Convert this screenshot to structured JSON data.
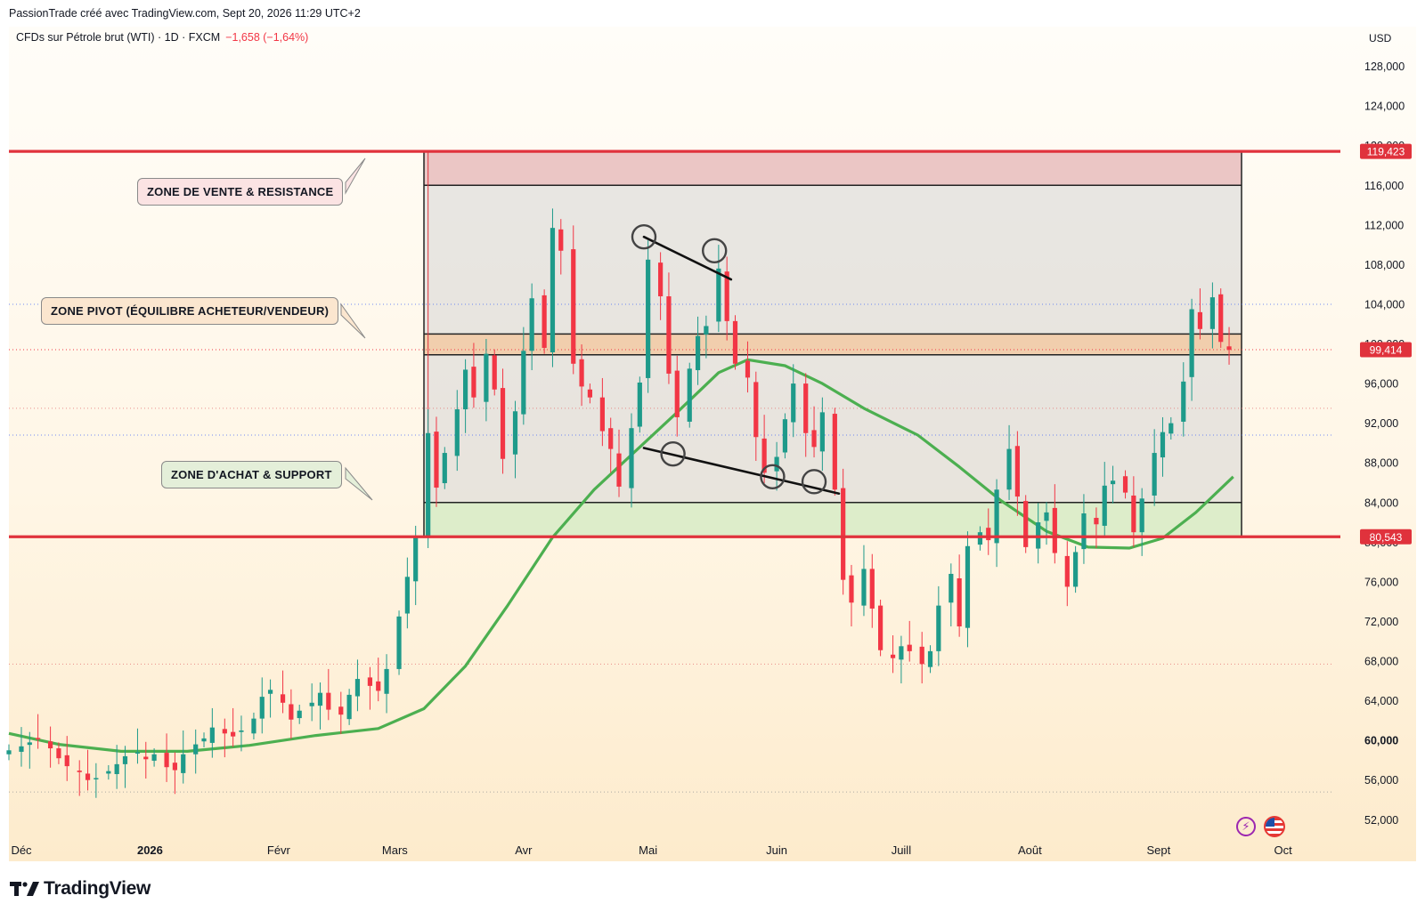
{
  "header": {
    "attribution": "PassionTrade créé avec TradingView.com, Sept 20, 2026 11:29 UTC+2",
    "symbol": "CFDs sur Pétrole brut (WTI) · 1D · FXCM",
    "change": "−1,658 (−1,64%)",
    "currency": "USD"
  },
  "footer": {
    "logo_text": "TradingView"
  },
  "colors": {
    "up": "#1e9a8a",
    "down": "#f23645",
    "ma": "#4caf50",
    "level_line": "#e0323c",
    "zone_sell": "#e6b9b9",
    "zone_pivot": "#f2c8a0",
    "zone_buy": "#d7ebc6",
    "zone_range": "#d6d6d6"
  },
  "annotations": {
    "sell_zone_label": "ZONE DE VENTE & RESISTANCE",
    "pivot_zone_label": "ZONE PIVOT (ÉQUILIBRE ACHETEUR/VENDEUR)",
    "buy_zone_label": "ZONE D'ACHAT & SUPPORT"
  },
  "icons": [
    "lightning-icon",
    "us-flag-icon",
    "tradingview-logo-icon"
  ],
  "chart_data": {
    "type": "candlestick",
    "x_ticks": [
      "Déc",
      "2026",
      "Févr",
      "Mars",
      "Avr",
      "Mai",
      "Juin",
      "Juill",
      "Août",
      "Sept",
      "Oct"
    ],
    "y_ticks": [
      "128,000",
      "124,000",
      "120,000",
      "116,000",
      "112,000",
      "108,000",
      "104,000",
      "100,000",
      "96,000",
      "92,000",
      "88,000",
      "84,000",
      "80,000",
      "76,000",
      "72,000",
      "68,000",
      "64,000",
      "60,000",
      "56,000",
      "52,000"
    ],
    "ylim": [
      49600,
      132000
    ],
    "price_labels": [
      "119,423",
      "99,414",
      "80,543"
    ],
    "levels": {
      "resistance": 119.423,
      "support": 80.543,
      "last": 99.414
    },
    "zones": {
      "sell": [
        116.0,
        119.4
      ],
      "range": [
        84.0,
        116.0
      ],
      "pivot": [
        98.9,
        101.0
      ],
      "buy": [
        80.5,
        84.0
      ]
    },
    "trendlines": [
      {
        "from": [
          "2026-04-30",
          110.8
        ],
        "to": [
          "2026-05-21",
          106.5
        ]
      },
      {
        "from": [
          "2026-04-30",
          89.5
        ],
        "to": [
          "2026-06-16",
          84.9
        ]
      }
    ],
    "pivot_marks": [
      [
        "2026-04-30",
        110.8
      ],
      [
        "2026-05-17",
        109.4
      ],
      [
        "2026-05-07",
        88.9
      ],
      [
        "2026-05-31",
        86.6
      ],
      [
        "2026-06-10",
        86.1
      ]
    ],
    "closes": [
      [
        "2025-11-28",
        59.0
      ],
      [
        "2025-12-01",
        59.4
      ],
      [
        "2025-12-03",
        59.8
      ],
      [
        "2025-12-05",
        60.2
      ],
      [
        "2025-12-08",
        59.2
      ],
      [
        "2025-12-10",
        58.2
      ],
      [
        "2025-12-12",
        57.4
      ],
      [
        "2025-12-15",
        56.8
      ],
      [
        "2025-12-17",
        56.0
      ],
      [
        "2025-12-19",
        56.2
      ],
      [
        "2025-12-22",
        56.9
      ],
      [
        "2025-12-24",
        57.6
      ],
      [
        "2025-12-26",
        58.4
      ],
      [
        "2025-12-29",
        58.8
      ],
      [
        "2025-12-31",
        58.1
      ],
      [
        "2026-01-02",
        58.6
      ],
      [
        "2026-01-05",
        57.3
      ],
      [
        "2026-01-07",
        57.0
      ],
      [
        "2026-01-09",
        58.6
      ],
      [
        "2026-01-12",
        59.6
      ],
      [
        "2026-01-14",
        60.2
      ],
      [
        "2026-01-16",
        61.3
      ],
      [
        "2026-01-19",
        60.7
      ],
      [
        "2026-01-21",
        60.4
      ],
      [
        "2026-01-23",
        61.0
      ],
      [
        "2026-01-26",
        62.2
      ],
      [
        "2026-01-28",
        64.4
      ],
      [
        "2026-01-30",
        65.1
      ],
      [
        "2026-02-02",
        63.8
      ],
      [
        "2026-02-04",
        62.1
      ],
      [
        "2026-02-06",
        63.0
      ],
      [
        "2026-02-09",
        63.8
      ],
      [
        "2026-02-11",
        64.8
      ],
      [
        "2026-02-13",
        63.1
      ],
      [
        "2026-02-16",
        62.6
      ],
      [
        "2026-02-18",
        64.6
      ],
      [
        "2026-02-20",
        66.2
      ],
      [
        "2026-02-23",
        65.5
      ],
      [
        "2026-02-25",
        65.0
      ],
      [
        "2026-02-27",
        67.2
      ],
      [
        "2026-03-02",
        72.5
      ],
      [
        "2026-03-04",
        76.5
      ],
      [
        "2026-03-06",
        80.6
      ],
      [
        "2026-03-09",
        91.0
      ],
      [
        "2026-03-11",
        85.5
      ],
      [
        "2026-03-13",
        89.0
      ],
      [
        "2026-03-16",
        93.4
      ],
      [
        "2026-03-18",
        97.4
      ],
      [
        "2026-03-20",
        94.6
      ],
      [
        "2026-03-23",
        99.0
      ],
      [
        "2026-03-25",
        95.4
      ],
      [
        "2026-03-27",
        88.4
      ],
      [
        "2026-03-30",
        93.2
      ],
      [
        "2026-04-01",
        99.3
      ],
      [
        "2026-04-03",
        104.6
      ],
      [
        "2026-04-06",
        99.6
      ],
      [
        "2026-04-08",
        111.7
      ],
      [
        "2026-04-10",
        109.4
      ],
      [
        "2026-04-13",
        98.0
      ],
      [
        "2026-04-15",
        95.7
      ],
      [
        "2026-04-17",
        94.6
      ],
      [
        "2026-04-20",
        91.2
      ],
      [
        "2026-04-22",
        89.4
      ],
      [
        "2026-04-24",
        85.6
      ],
      [
        "2026-04-27",
        91.5
      ],
      [
        "2026-04-29",
        96.1
      ],
      [
        "2026-05-01",
        108.5
      ],
      [
        "2026-05-04",
        104.8
      ],
      [
        "2026-05-06",
        97.0
      ],
      [
        "2026-05-08",
        92.6
      ],
      [
        "2026-05-11",
        97.5
      ],
      [
        "2026-05-13",
        100.8
      ],
      [
        "2026-05-15",
        101.8
      ],
      [
        "2026-05-18",
        107.6
      ],
      [
        "2026-05-20",
        102.3
      ],
      [
        "2026-05-22",
        98.0
      ],
      [
        "2026-05-25",
        96.6
      ],
      [
        "2026-05-27",
        90.6
      ],
      [
        "2026-05-29",
        87.0
      ],
      [
        "2026-06-01",
        88.6
      ],
      [
        "2026-06-03",
        92.4
      ],
      [
        "2026-06-05",
        96.0
      ],
      [
        "2026-06-08",
        91.0
      ],
      [
        "2026-06-10",
        89.6
      ],
      [
        "2026-06-12",
        93.1
      ],
      [
        "2026-06-15",
        85.3
      ],
      [
        "2026-06-17",
        76.2
      ],
      [
        "2026-06-19",
        73.9
      ],
      [
        "2026-06-22",
        77.3
      ],
      [
        "2026-06-24",
        73.3
      ],
      [
        "2026-06-26",
        69.1
      ],
      [
        "2026-06-29",
        68.3
      ],
      [
        "2026-07-01",
        69.5
      ],
      [
        "2026-07-03",
        69.0
      ],
      [
        "2026-07-06",
        67.7
      ],
      [
        "2026-07-08",
        69.0
      ],
      [
        "2026-07-10",
        73.6
      ],
      [
        "2026-07-13",
        76.8
      ],
      [
        "2026-07-15",
        71.5
      ],
      [
        "2026-07-17",
        79.6
      ],
      [
        "2026-07-20",
        81.0
      ],
      [
        "2026-07-22",
        80.2
      ],
      [
        "2026-07-24",
        85.3
      ],
      [
        "2026-07-27",
        89.4
      ],
      [
        "2026-07-29",
        84.6
      ],
      [
        "2026-07-31",
        79.5
      ],
      [
        "2026-08-03",
        82.0
      ],
      [
        "2026-08-05",
        83.0
      ],
      [
        "2026-08-07",
        78.9
      ],
      [
        "2026-08-10",
        75.5
      ],
      [
        "2026-08-12",
        79.0
      ],
      [
        "2026-08-14",
        82.9
      ],
      [
        "2026-08-17",
        81.8
      ],
      [
        "2026-08-19",
        85.7
      ],
      [
        "2026-08-21",
        86.2
      ],
      [
        "2026-08-24",
        85.0
      ],
      [
        "2026-08-26",
        81.0
      ],
      [
        "2026-08-28",
        84.4
      ],
      [
        "2026-08-31",
        89.0
      ],
      [
        "2026-09-02",
        91.1
      ],
      [
        "2026-09-04",
        92.0
      ],
      [
        "2026-09-07",
        96.2
      ],
      [
        "2026-09-09",
        103.5
      ],
      [
        "2026-09-11",
        101.5
      ],
      [
        "2026-09-14",
        104.7
      ],
      [
        "2026-09-16",
        100.2
      ],
      [
        "2026-09-18",
        99.4
      ]
    ],
    "moving_average": [
      [
        "2025-11-28",
        60.7
      ],
      [
        "2025-12-10",
        59.6
      ],
      [
        "2025-12-25",
        58.9
      ],
      [
        "2026-01-10",
        58.9
      ],
      [
        "2026-01-25",
        59.5
      ],
      [
        "2026-02-10",
        60.5
      ],
      [
        "2026-02-25",
        61.2
      ],
      [
        "2026-03-08",
        63.2
      ],
      [
        "2026-03-18",
        67.5
      ],
      [
        "2026-03-28",
        73.5
      ],
      [
        "2026-04-08",
        80.5
      ],
      [
        "2026-04-18",
        85.3
      ],
      [
        "2026-04-28",
        89.2
      ],
      [
        "2026-05-08",
        93.1
      ],
      [
        "2026-05-18",
        97.1
      ],
      [
        "2026-05-25",
        98.4
      ],
      [
        "2026-06-03",
        97.8
      ],
      [
        "2026-06-12",
        96.0
      ],
      [
        "2026-06-22",
        93.5
      ],
      [
        "2026-07-05",
        90.8
      ],
      [
        "2026-07-15",
        87.6
      ],
      [
        "2026-07-25",
        84.2
      ],
      [
        "2026-08-05",
        81.1
      ],
      [
        "2026-08-15",
        79.5
      ],
      [
        "2026-08-25",
        79.4
      ],
      [
        "2026-09-02",
        80.4
      ],
      [
        "2026-09-10",
        83.0
      ],
      [
        "2026-09-19",
        86.6
      ]
    ]
  }
}
